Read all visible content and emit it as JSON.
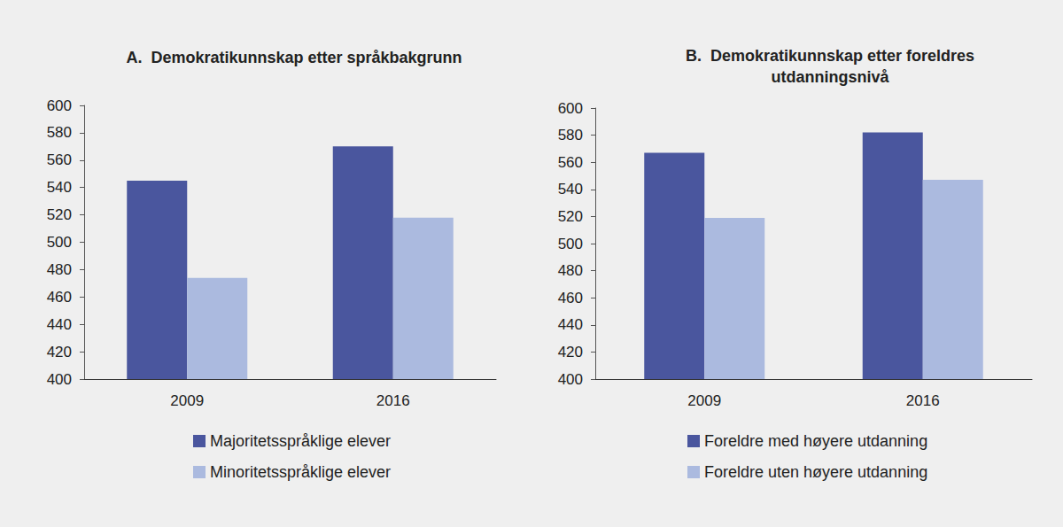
{
  "chart_data": [
    {
      "type": "bar",
      "title": "A.  Demokratikunnskap etter språkbakgrunn",
      "categories": [
        "2009",
        "2016"
      ],
      "series": [
        {
          "name": "Majoritetsspråklige elever",
          "color": "#4a569e",
          "values": [
            545,
            570
          ]
        },
        {
          "name": "Minoritetsspråklige elever",
          "color": "#abbadf",
          "values": [
            474,
            518
          ]
        }
      ],
      "ylim": [
        400,
        600
      ],
      "yticks": [
        400,
        420,
        440,
        460,
        480,
        500,
        520,
        540,
        560,
        580,
        600
      ],
      "grid": false,
      "legend": "bottom",
      "data_labels": false
    },
    {
      "type": "bar",
      "title": "B.  Demokratikunnskap etter foreldres\nutdanningsnivå",
      "categories": [
        "2009",
        "2016"
      ],
      "series": [
        {
          "name": "Foreldre med høyere utdanning",
          "color": "#4a569e",
          "values": [
            567,
            582
          ]
        },
        {
          "name": "Foreldre uten høyere utdanning",
          "color": "#abbadf",
          "values": [
            519,
            547
          ]
        }
      ],
      "ylim": [
        400,
        600
      ],
      "yticks": [
        400,
        420,
        440,
        460,
        480,
        500,
        520,
        540,
        560,
        580,
        600
      ],
      "grid": false,
      "legend": "bottom",
      "data_labels": false
    }
  ]
}
